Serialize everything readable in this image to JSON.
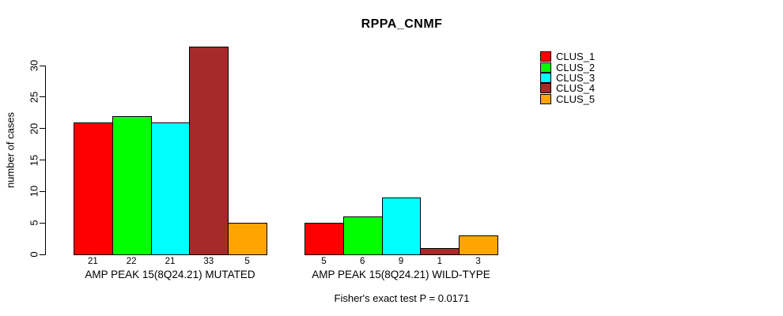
{
  "chart_data": {
    "type": "bar",
    "title": "RPPA_CNMF",
    "xlabel": "",
    "ylabel": "number of cases",
    "categories": [
      "AMP PEAK 15(8Q24.21) MUTATED",
      "AMP PEAK 15(8Q24.21) WILD-TYPE"
    ],
    "series": [
      {
        "name": "CLUS_1",
        "color": "#FF0000",
        "values": [
          21,
          5
        ]
      },
      {
        "name": "CLUS_2",
        "color": "#00FF00",
        "values": [
          22,
          6
        ]
      },
      {
        "name": "CLUS_3",
        "color": "#00FFFF",
        "values": [
          21,
          9
        ]
      },
      {
        "name": "CLUS_4",
        "color": "#A52A2A",
        "values": [
          33,
          1
        ]
      },
      {
        "name": "CLUS_5",
        "color": "#FFA500",
        "values": [
          5,
          3
        ]
      }
    ],
    "yticks": [
      0,
      5,
      10,
      15,
      20,
      25,
      30
    ],
    "ylim": [
      0,
      33
    ],
    "grid": false,
    "legend_position": "right",
    "annotation": "Fisher's exact test P = 0.0171"
  }
}
